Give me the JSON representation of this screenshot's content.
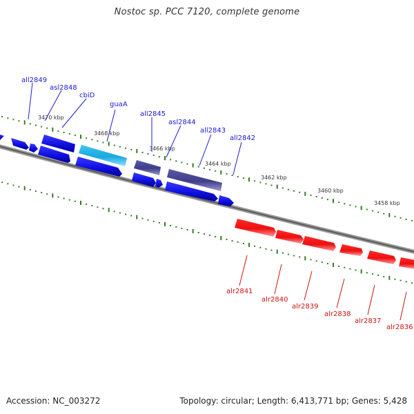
{
  "title": "Nostoc sp. PCC 7120, complete genome",
  "footer": {
    "accession": "Accession: NC_003272",
    "summary": "Topology: circular; Length: 6,413,771 bp; Genes: 5,428"
  },
  "colors": {
    "backbone": "#8c8c8c",
    "tick": "#2f7d1f",
    "reverse_gene": "#1414e6",
    "forward_gene": "#ee1111",
    "highlight_gene": "#20b8e8",
    "dark_gene": "#4a4890",
    "reverse_label": "#1a1ad0",
    "forward_label": "#cc1111"
  },
  "scale_labels": [
    "3470 kbp",
    "3468 kbp",
    "3466 kbp",
    "3464 kbp",
    "3462 kbp",
    "3460 kbp",
    "3458 kbp"
  ],
  "reverse_gene_labels": [
    "all2849",
    "asl2848",
    "cbiD",
    "guaA",
    "all2845",
    "asl2844",
    "all2843",
    "all2842"
  ],
  "forward_gene_labels": [
    "alr2841",
    "alr2840",
    "alr2839",
    "alr2838",
    "alr2837",
    "alr2836"
  ]
}
